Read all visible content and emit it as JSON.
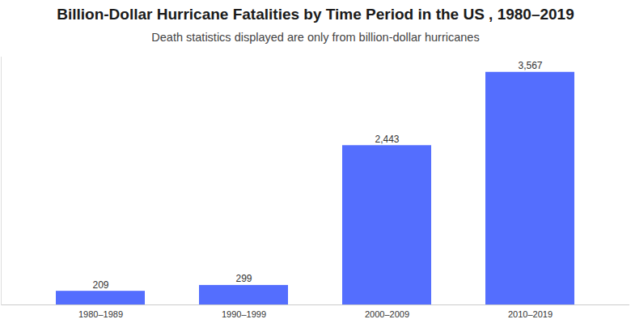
{
  "chart_data": {
    "type": "bar",
    "title": "Billion-Dollar Hurricane Fatalities by Time Period in the US , 1980–2019",
    "subtitle": "Death statistics displayed are only from billion-dollar hurricanes",
    "categories": [
      "1980–1989",
      "1990–1999",
      "2000–2009",
      "2010–2019"
    ],
    "values": [
      209,
      299,
      2443,
      3567
    ],
    "value_labels": [
      "209",
      "299",
      "2,443",
      "3,567"
    ],
    "color": "#546efe",
    "ylim": [
      0,
      3800
    ],
    "data_labels": true,
    "tick_labels": "x",
    "grid": false
  }
}
